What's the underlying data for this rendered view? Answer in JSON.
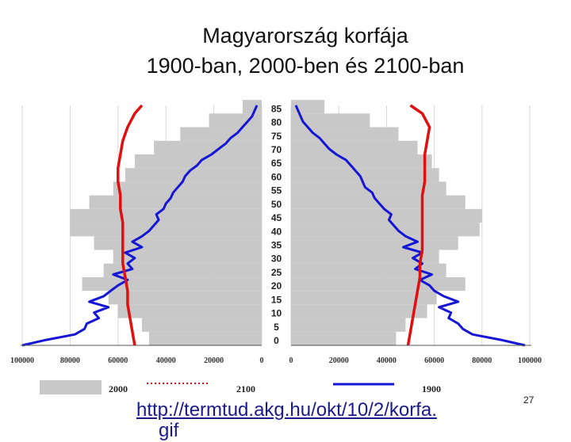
{
  "title": {
    "line1": "Magyarország korfája",
    "line2": "1900-ban, 2000-ben és 2100-ban"
  },
  "footer": {
    "link": "http://termtud.akg.hu/okt/10/2/korfa.",
    "link_cont": "gif",
    "page_number": "27"
  },
  "colors": {
    "bars": "#c8c8c8",
    "line_1900": "#1515d6",
    "line_2100": "#e01010",
    "grid": "#d8d8d8"
  },
  "chart_data": {
    "type": "population-pyramid",
    "title": "Magyarország korfája 1900-ban, 2000-ben és 2100-ban",
    "age_labels": [
      "85",
      "80",
      "75",
      "70",
      "65",
      "60",
      "55",
      "50",
      "45",
      "40",
      "35",
      "30",
      "25",
      "20",
      "15",
      "10",
      "5",
      "0"
    ],
    "x_ticks_left": [
      "100000",
      "80000",
      "60000",
      "40000",
      "20000",
      "0"
    ],
    "x_ticks_right": [
      "0",
      "20000",
      "40000",
      "60000",
      "80000",
      "100000"
    ],
    "xlim": [
      0,
      100000
    ],
    "age_range": [
      0,
      89
    ],
    "legend": [
      {
        "label": "2000",
        "style": "gray bars"
      },
      {
        "label": "2100",
        "style": "red dotted line"
      },
      {
        "label": "1900",
        "style": "blue line"
      }
    ],
    "series": [
      {
        "name": "2000",
        "type": "bar",
        "ages": [
          0,
          5,
          10,
          15,
          20,
          25,
          30,
          35,
          40,
          45,
          50,
          55,
          60,
          65,
          70,
          75,
          80,
          85
        ],
        "male": [
          47000,
          50000,
          60000,
          64000,
          75000,
          66000,
          62000,
          70000,
          80000,
          80000,
          72000,
          62000,
          57000,
          53000,
          45000,
          34000,
          22000,
          8000
        ],
        "female": [
          44000,
          48000,
          57000,
          61000,
          73000,
          65000,
          62000,
          70000,
          79000,
          80000,
          73000,
          65000,
          62000,
          59000,
          53000,
          45000,
          33000,
          14000
        ]
      },
      {
        "name": "1900",
        "type": "line",
        "ages": [
          0,
          2,
          4,
          6,
          8,
          10,
          12,
          14,
          16,
          18,
          20,
          22,
          24,
          26,
          28,
          30,
          32,
          34,
          36,
          38,
          40,
          42,
          44,
          46,
          48,
          50,
          52,
          54,
          56,
          58,
          60,
          62,
          64,
          66,
          68,
          70,
          72,
          74,
          76,
          78,
          80,
          82,
          84,
          86,
          88
        ],
        "male": [
          100000,
          90000,
          78000,
          74000,
          73000,
          68000,
          70000,
          64000,
          72000,
          66000,
          63000,
          60000,
          56000,
          62000,
          54000,
          56000,
          53000,
          57000,
          50000,
          54000,
          50000,
          47000,
          45000,
          43000,
          44000,
          41000,
          40000,
          38000,
          37000,
          35000,
          33000,
          32000,
          30000,
          27000,
          25000,
          21000,
          18000,
          15000,
          13000,
          10000,
          8000,
          6000,
          4000,
          3000,
          2000
        ],
        "female": [
          98000,
          88000,
          76000,
          72000,
          70000,
          66000,
          67000,
          62000,
          70000,
          64000,
          60000,
          58000,
          54000,
          59000,
          52000,
          55000,
          51000,
          55000,
          47000,
          53000,
          48000,
          45000,
          43000,
          41000,
          42000,
          39000,
          37000,
          35000,
          34000,
          31000,
          30000,
          29000,
          27000,
          25000,
          23000,
          19000,
          16000,
          14000,
          12000,
          9000,
          7000,
          5000,
          4000,
          3000,
          2000
        ]
      },
      {
        "name": "2100",
        "type": "line",
        "ages": [
          0,
          5,
          10,
          15,
          20,
          25,
          30,
          35,
          40,
          45,
          50,
          55,
          60,
          65,
          70,
          75,
          80,
          85,
          88
        ],
        "male": [
          53000,
          54000,
          55000,
          56000,
          56000,
          57000,
          58000,
          58000,
          58000,
          58000,
          59000,
          59000,
          60000,
          60000,
          59000,
          58000,
          56000,
          53000,
          50000
        ],
        "female": [
          49000,
          50000,
          51000,
          52000,
          53000,
          54000,
          54000,
          55000,
          55000,
          55000,
          55000,
          55000,
          56000,
          56000,
          56000,
          57000,
          58000,
          55000,
          50000
        ]
      }
    ]
  }
}
